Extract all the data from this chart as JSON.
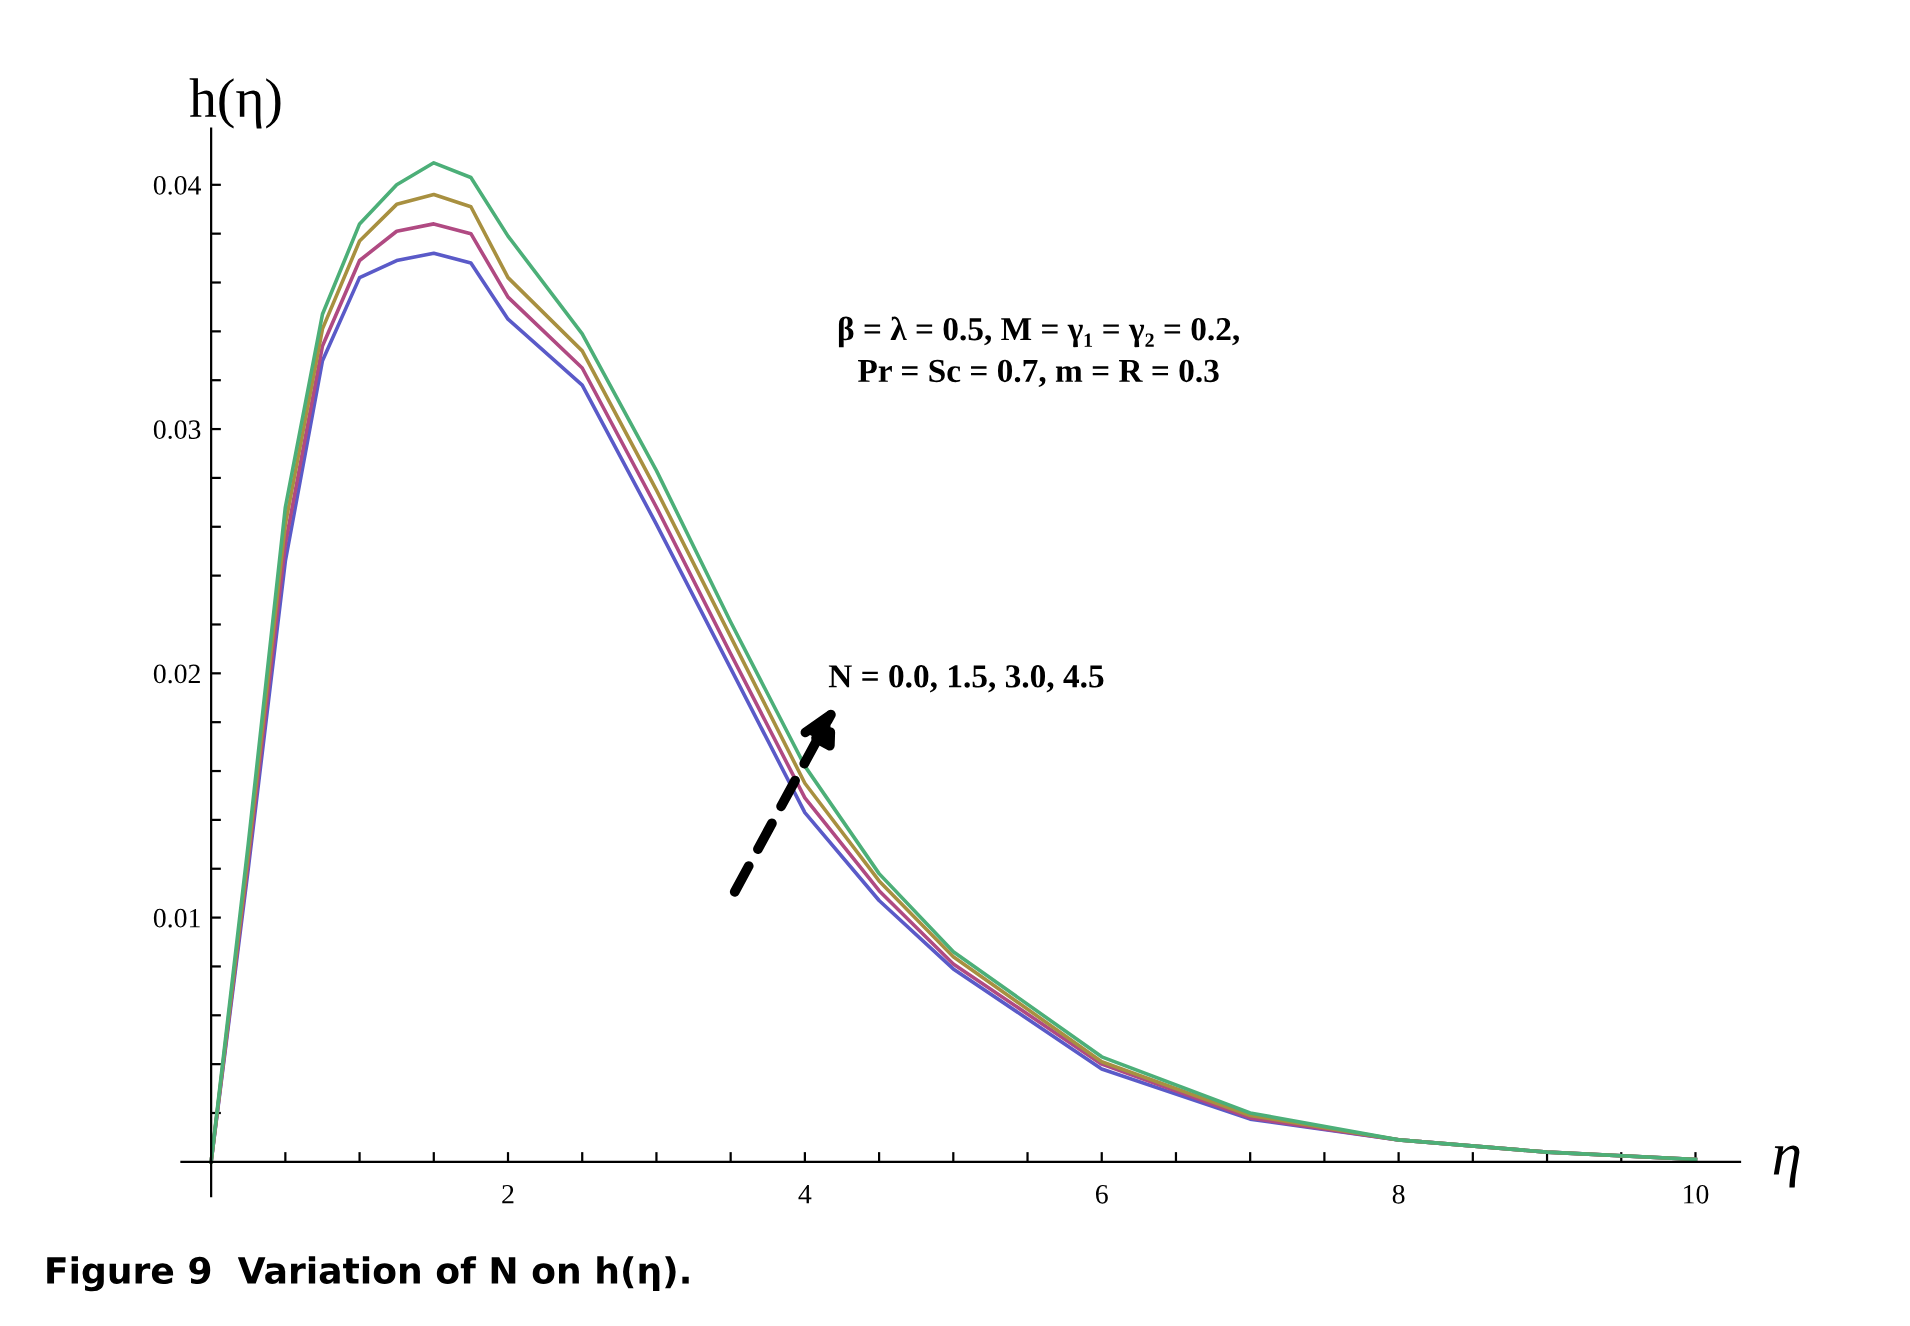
{
  "chart_data": {
    "type": "line",
    "xlabel": "η",
    "ylabel": "h(η)",
    "x": [
      0,
      0.25,
      0.5,
      0.75,
      1.0,
      1.25,
      1.5,
      1.75,
      2.0,
      2.5,
      3.0,
      3.5,
      4.0,
      4.5,
      5.0,
      6.0,
      7.0,
      8.0,
      9.0,
      10.0
    ],
    "series": [
      {
        "color": "#5a5ac8",
        "values": [
          0,
          0.012,
          0.0246,
          0.0328,
          0.0362,
          0.0369,
          0.0372,
          0.0368,
          0.0345,
          0.0318,
          0.0261,
          0.0202,
          0.0143,
          0.0107,
          0.0079,
          0.0038,
          0.00175,
          0.0009,
          0.0004,
          0.0001
        ]
      },
      {
        "color": "#b04a82",
        "values": [
          0,
          0.0123,
          0.0253,
          0.0334,
          0.0369,
          0.0381,
          0.0384,
          0.038,
          0.0354,
          0.0325,
          0.0268,
          0.0208,
          0.0149,
          0.0111,
          0.0081,
          0.004,
          0.0018,
          0.0009,
          0.0004,
          0.0001
        ]
      },
      {
        "color": "#a89040",
        "values": [
          0,
          0.0126,
          0.0261,
          0.0341,
          0.0377,
          0.0392,
          0.0396,
          0.0391,
          0.0362,
          0.0332,
          0.0275,
          0.0215,
          0.0155,
          0.0115,
          0.0084,
          0.0041,
          0.0019,
          0.0009,
          0.0004,
          0.0001
        ]
      },
      {
        "color": "#4caf78",
        "values": [
          0,
          0.013,
          0.0268,
          0.0347,
          0.0384,
          0.04,
          0.0409,
          0.0403,
          0.0379,
          0.0339,
          0.0283,
          0.0221,
          0.0162,
          0.0118,
          0.0086,
          0.0043,
          0.002,
          0.0009,
          0.0004,
          0.0001
        ]
      }
    ],
    "xlim": [
      -0.2,
      10.3
    ],
    "ylim": [
      -0.0014,
      0.0423
    ],
    "xticks": [
      {
        "value": 0.5,
        "label": null
      },
      {
        "value": 1,
        "label": null
      },
      {
        "value": 1.5,
        "label": null
      },
      2,
      {
        "value": 2.5,
        "label": null
      },
      {
        "value": 3,
        "label": null
      },
      {
        "value": 3.5,
        "label": null
      },
      4,
      {
        "value": 4.5,
        "label": null
      },
      {
        "value": 5,
        "label": null
      },
      {
        "value": 5.5,
        "label": null
      },
      6,
      {
        "value": 6.5,
        "label": null
      },
      {
        "value": 7,
        "label": null
      },
      {
        "value": 7.5,
        "label": null
      },
      8,
      {
        "value": 8.5,
        "label": null
      },
      {
        "value": 9,
        "label": null
      },
      {
        "value": 9.5,
        "label": null
      },
      10
    ],
    "yticks": [
      {
        "value": 0.002,
        "label": null
      },
      {
        "value": 0.004,
        "label": null
      },
      {
        "value": 0.006,
        "label": null
      },
      {
        "value": 0.008,
        "label": null
      },
      0.01,
      {
        "value": 0.012,
        "label": null
      },
      {
        "value": 0.014,
        "label": null
      },
      {
        "value": 0.016,
        "label": null
      },
      {
        "value": 0.018,
        "label": null
      },
      0.02,
      {
        "value": 0.022,
        "label": null
      },
      {
        "value": 0.024,
        "label": null
      },
      {
        "value": 0.026,
        "label": null
      },
      {
        "value": 0.028,
        "label": null
      },
      0.03,
      {
        "value": 0.032,
        "label": null
      },
      {
        "value": 0.034,
        "label": null
      },
      {
        "value": 0.036,
        "label": null
      },
      {
        "value": 0.038,
        "label": null
      },
      0.04
    ],
    "grid": false,
    "legend": false,
    "marker": "none",
    "line_style": "solid",
    "annotations": [
      "β = λ = 0.5, M = γ₁ = γ₂ = 0.2,\nPr = Sc = 0.7, m = R = 0.3",
      "N = 0.0, 1.5, 3.0, 4.5",
      "Figure 9  Variation of N on h(η)."
    ]
  }
}
